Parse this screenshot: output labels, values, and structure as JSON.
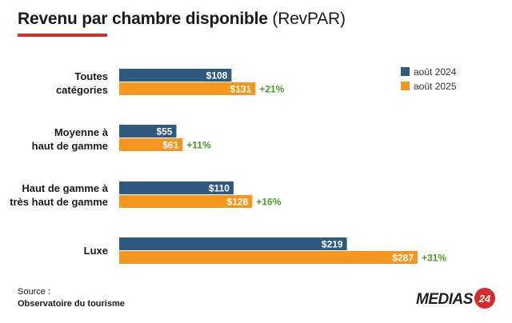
{
  "title": {
    "main": "Revenu par chambre disponible",
    "abbr": "(RevPAR)"
  },
  "colors": {
    "accent": "#d62b2b",
    "series_2024": "#2e5a80",
    "series_2025": "#f5961e",
    "growth": "#4a9a24"
  },
  "chart_data": {
    "type": "bar",
    "orientation": "horizontal",
    "categories": [
      [
        "Toutes",
        "catégories"
      ],
      [
        "Moyenne à",
        "haut de gamme"
      ],
      [
        "Haut de gamme à",
        "très haut de gamme"
      ],
      [
        "Luxe"
      ]
    ],
    "series": [
      {
        "name": "août 2024",
        "values": [
          108,
          55,
          110,
          219
        ],
        "labels": [
          "$108",
          "$55",
          "$110",
          "$219"
        ]
      },
      {
        "name": "août 2025",
        "values": [
          131,
          61,
          128,
          287
        ],
        "labels": [
          "$131",
          "$61",
          "$128",
          "$287"
        ]
      }
    ],
    "growth_labels": [
      "+21%",
      "+11%",
      "+16%",
      "+31%"
    ],
    "legend_position": "top-right",
    "xlim": [
      0,
      287
    ],
    "grid": false
  },
  "source": {
    "label": "Source :",
    "name": "Observatoire du tourisme"
  },
  "logo": {
    "text": "MEDIAS",
    "badge": "24"
  }
}
